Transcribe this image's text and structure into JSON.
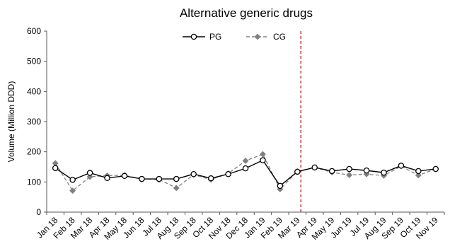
{
  "chart_data": {
    "type": "line",
    "title": "Alternative generic drugs",
    "xlabel": "",
    "ylabel": "Volume (Million DDD)",
    "ylim": [
      0,
      600
    ],
    "yticks": [
      "0",
      "100",
      "200",
      "300",
      "400",
      "500",
      "600"
    ],
    "grid": false,
    "legend_position": "top-center",
    "categories": [
      "Jan 18",
      "Feb 18",
      "Mar 18",
      "Apr 18",
      "May 18",
      "Jun 18",
      "Jul 18",
      "Aug 18",
      "Sep 18",
      "Oct 18",
      "Nov 18",
      "Dec 18",
      "Jan 19",
      "Feb 19",
      "Mar 19",
      "Apr 19",
      "May 19",
      "Jun 19",
      "Jul 19",
      "Aug 19",
      "Sep 19",
      "Oct 19",
      "Nov 19"
    ],
    "series": [
      {
        "name": "PG",
        "color": "#000000",
        "marker": "open-circle",
        "line_style": "solid",
        "values": [
          146,
          107,
          130,
          113,
          120,
          110,
          110,
          110,
          126,
          112,
          126,
          145,
          172,
          87,
          134,
          148,
          136,
          143,
          138,
          131,
          154,
          136,
          143
        ]
      },
      {
        "name": "CG",
        "color": "#808080",
        "marker": "diamond",
        "line_style": "dashed",
        "values": [
          162,
          71,
          117,
          121,
          122,
          110,
          108,
          80,
          124,
          108,
          128,
          170,
          192,
          76,
          135,
          148,
          132,
          123,
          126,
          121,
          152,
          122,
          143
        ]
      }
    ],
    "reference_line": {
      "category": "Mar 19",
      "color": "#c00000",
      "style": "dashed"
    }
  }
}
